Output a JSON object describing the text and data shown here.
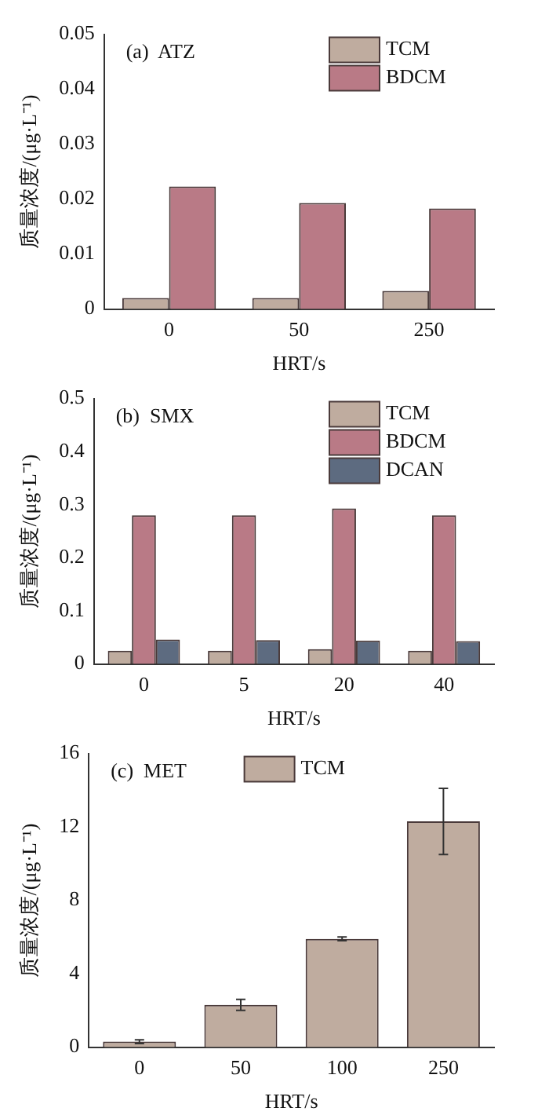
{
  "chart_data": [
    {
      "type": "bar",
      "title": "(a)  ATZ",
      "xlabel": "HRT/s",
      "ylabel": "质量浓度/(μg·L⁻¹)",
      "categories": [
        "0",
        "50",
        "250"
      ],
      "series": [
        {
          "name": "TCM",
          "color": "#bfac9f",
          "values": [
            0.002,
            0.002,
            0.0033
          ]
        },
        {
          "name": "BDCM",
          "color": "#b97a86",
          "values": [
            0.0223,
            0.0193,
            0.0183
          ]
        }
      ],
      "ylim": [
        0,
        0.05
      ],
      "yticks": [
        0,
        0.01,
        0.02,
        0.03,
        0.04,
        0.05
      ],
      "grid": false,
      "legend": "top right"
    },
    {
      "type": "bar",
      "title": "(b)  SMX",
      "xlabel": "HRT/s",
      "ylabel": "质量浓度/(μg·L⁻¹)",
      "categories": [
        "0",
        "5",
        "20",
        "40"
      ],
      "series": [
        {
          "name": "TCM",
          "color": "#bfac9f",
          "values": [
            0.025,
            0.025,
            0.028,
            0.025
          ]
        },
        {
          "name": "BDCM",
          "color": "#b97a86",
          "values": [
            0.28,
            0.28,
            0.293,
            0.28
          ]
        },
        {
          "name": "DCAN",
          "color": "#5d6b80",
          "values": [
            0.046,
            0.045,
            0.044,
            0.043
          ]
        }
      ],
      "ylim": [
        0,
        0.5
      ],
      "yticks": [
        0,
        0.1,
        0.2,
        0.3,
        0.4,
        0.5
      ],
      "grid": false,
      "legend": "top right"
    },
    {
      "type": "bar",
      "title": "(c)  MET",
      "xlabel": "HRT/s",
      "ylabel": "质量浓度/(μg·L⁻¹)",
      "categories": [
        "0",
        "50",
        "100",
        "250"
      ],
      "series": [
        {
          "name": "TCM",
          "color": "#bfac9f",
          "values": [
            0.3,
            2.3,
            5.9,
            12.3
          ],
          "errors": [
            0.1,
            0.3,
            0.1,
            1.8
          ]
        }
      ],
      "ylim": [
        0,
        16
      ],
      "yticks": [
        0,
        4,
        8,
        12,
        16
      ],
      "grid": false,
      "legend": "top"
    }
  ]
}
